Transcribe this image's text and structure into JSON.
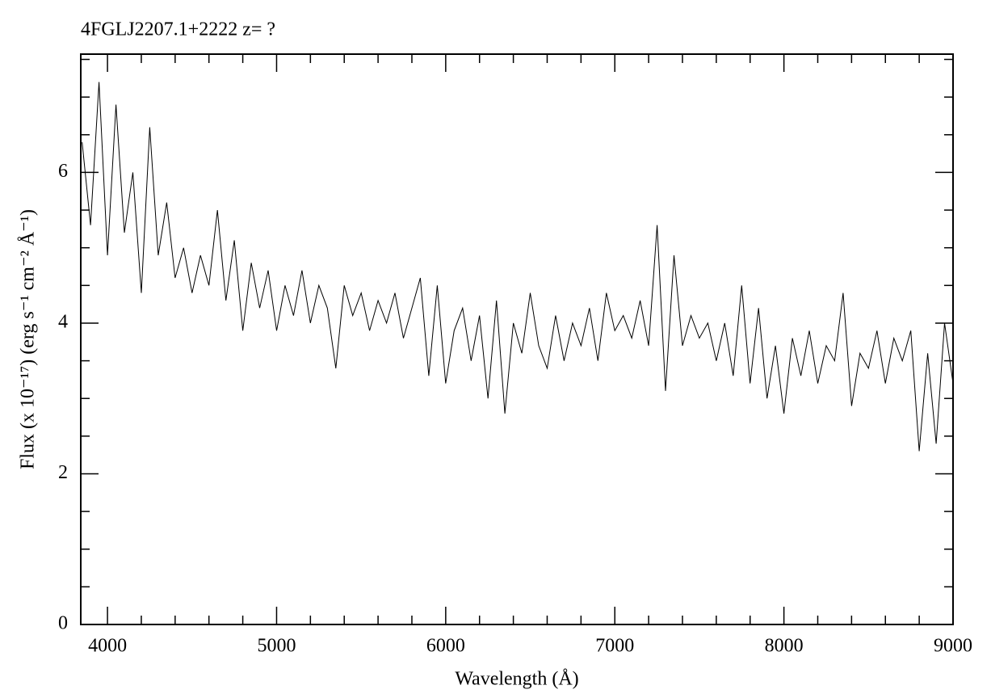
{
  "chart_data": {
    "type": "line",
    "title": "4FGLJ2207.1+2222 z= ?",
    "xlabel": "Wavelength (Å)",
    "ylabel": "Flux (x 10⁻¹⁷) (erg s⁻¹ cm⁻² Å⁻¹)",
    "color": "#000000",
    "x": [
      3850,
      3900,
      3950,
      4000,
      4050,
      4100,
      4150,
      4200,
      4250,
      4300,
      4350,
      4400,
      4450,
      4500,
      4550,
      4600,
      4650,
      4700,
      4750,
      4800,
      4850,
      4900,
      4950,
      5000,
      5050,
      5100,
      5150,
      5200,
      5250,
      5300,
      5350,
      5400,
      5450,
      5500,
      5550,
      5600,
      5650,
      5700,
      5750,
      5800,
      5850,
      5900,
      5950,
      6000,
      6050,
      6100,
      6150,
      6200,
      6250,
      6300,
      6350,
      6400,
      6450,
      6500,
      6550,
      6600,
      6650,
      6700,
      6750,
      6800,
      6850,
      6900,
      6950,
      7000,
      7050,
      7100,
      7150,
      7200,
      7250,
      7300,
      7350,
      7400,
      7450,
      7500,
      7550,
      7600,
      7650,
      7700,
      7750,
      7800,
      7850,
      7900,
      7950,
      8000,
      8050,
      8100,
      8150,
      8200,
      8250,
      8300,
      8350,
      8400,
      8450,
      8500,
      8550,
      8600,
      8650,
      8700,
      8750,
      8800,
      8850,
      8900,
      8950,
      9000
    ],
    "values": [
      6.4,
      5.3,
      7.2,
      4.9,
      6.9,
      5.2,
      6.0,
      4.4,
      6.6,
      4.9,
      5.6,
      4.6,
      5.0,
      4.4,
      4.9,
      4.5,
      5.5,
      4.3,
      5.1,
      3.9,
      4.8,
      4.2,
      4.7,
      3.9,
      4.5,
      4.1,
      4.7,
      4.0,
      4.5,
      4.2,
      3.4,
      4.5,
      4.1,
      4.4,
      3.9,
      4.3,
      4.0,
      4.4,
      3.8,
      4.2,
      4.6,
      3.3,
      4.5,
      3.2,
      3.9,
      4.2,
      3.5,
      4.1,
      3.0,
      4.3,
      2.8,
      4.0,
      3.6,
      4.4,
      3.7,
      3.4,
      4.1,
      3.5,
      4.0,
      3.7,
      4.2,
      3.5,
      4.4,
      3.9,
      4.1,
      3.8,
      4.3,
      3.7,
      5.3,
      3.1,
      4.9,
      3.7,
      4.1,
      3.8,
      4.0,
      3.5,
      4.0,
      3.3,
      4.5,
      3.2,
      4.2,
      3.0,
      3.7,
      2.8,
      3.8,
      3.3,
      3.9,
      3.2,
      3.7,
      3.5,
      4.4,
      2.9,
      3.6,
      3.4,
      3.9,
      3.2,
      3.8,
      3.5,
      3.9,
      2.3,
      3.6,
      2.4,
      4.0,
      3.2
    ],
    "xlim": [
      3842,
      9000
    ],
    "ylim": [
      0,
      7.57
    ],
    "xticks": [
      4000,
      5000,
      6000,
      7000,
      8000,
      9000
    ],
    "yticks": [
      0,
      2,
      4,
      6
    ],
    "xticks_minor": [
      4200,
      4400,
      4600,
      4800,
      5200,
      5400,
      5600,
      5800,
      6200,
      6400,
      6600,
      6800,
      7200,
      7400,
      7600,
      7800,
      8200,
      8400,
      8600,
      8800
    ],
    "yticks_minor": [
      0.5,
      1,
      1.5,
      2.5,
      3,
      3.5,
      4.5,
      5,
      5.5,
      6.5,
      7,
      7.5
    ]
  }
}
